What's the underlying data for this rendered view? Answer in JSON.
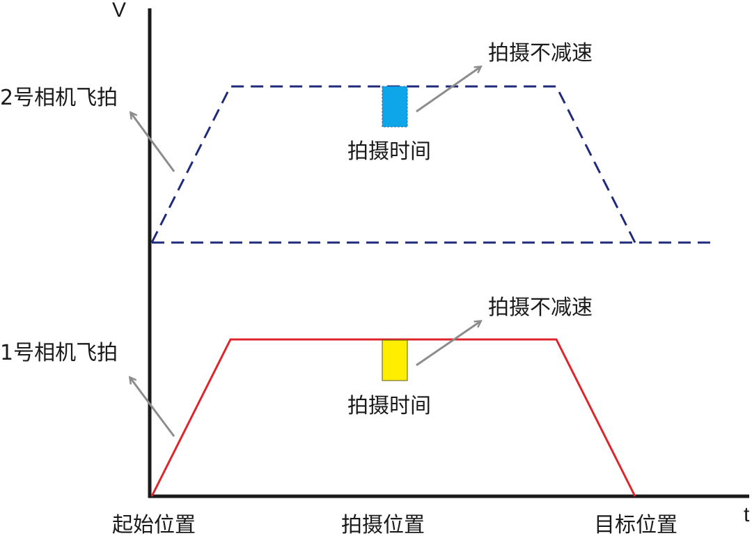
{
  "axes": {
    "y_label": "V",
    "x_label": "t"
  },
  "positions": {
    "start": "起始位置",
    "shoot": "拍摄位置",
    "target": "目标位置"
  },
  "camera2": {
    "label": "2号相机飞拍",
    "no_decel_label": "拍摄不减速",
    "shoot_time_label": "拍摄时间",
    "line_color": "#1f2a7a",
    "marker_color": "#0ea5e9",
    "line_style": "dashed"
  },
  "camera1": {
    "label": "1号相机飞拍",
    "no_decel_label": "拍摄不减速",
    "shoot_time_label": "拍摄时间",
    "line_color": "#e0242b",
    "marker_color": "#ffee00",
    "line_style": "solid"
  },
  "colors": {
    "axis": "#1a1a1a",
    "arrow": "#8c8c8c"
  }
}
